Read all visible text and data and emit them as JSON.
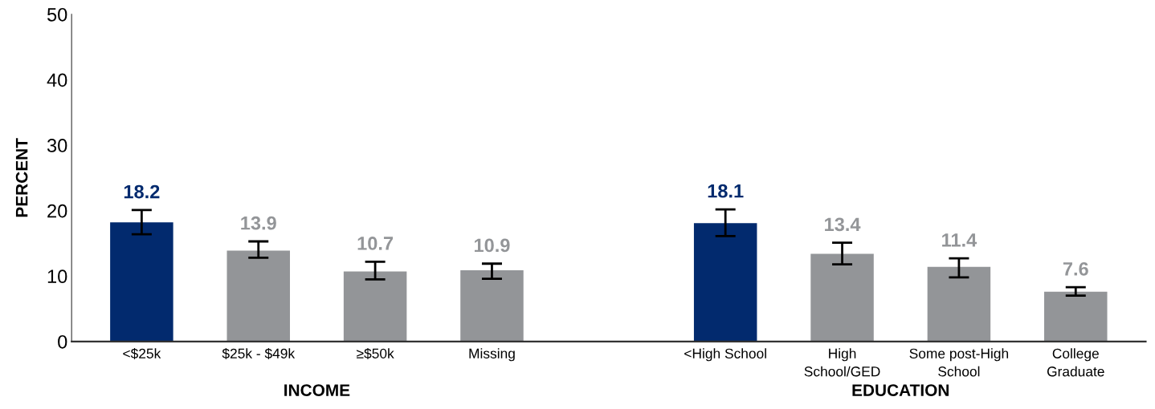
{
  "chart_data": {
    "type": "bar",
    "ylabel": "PERCENT",
    "categories": [
      "<$25k",
      "$25k - $49k",
      "≥$50k",
      "Missing",
      null,
      "<High School",
      "High School/GED",
      "Some post-High School",
      "College Graduate"
    ],
    "values": [
      18.2,
      13.9,
      10.7,
      10.9,
      null,
      18.1,
      13.4,
      11.4,
      7.6
    ],
    "colors": [
      "#022a6e",
      "#939598",
      "#939598",
      "#939598",
      "#939598",
      "#022a6e",
      "#939598",
      "#939598",
      "#939598"
    ],
    "errors": [
      [
        16.4,
        20.1
      ],
      [
        12.8,
        15.3
      ],
      [
        9.5,
        12.2
      ],
      [
        9.6,
        11.9
      ],
      null,
      [
        16.1,
        20.2
      ],
      [
        11.8,
        15.1
      ],
      [
        9.8,
        12.7
      ],
      [
        7.0,
        8.3
      ]
    ],
    "ylim": [
      0,
      50
    ],
    "yticks": [
      0,
      10,
      20,
      30,
      40,
      50
    ],
    "data_labels": true,
    "grid": false,
    "legend": false,
    "annotations": [
      "INCOME",
      "EDUCATION"
    ]
  }
}
